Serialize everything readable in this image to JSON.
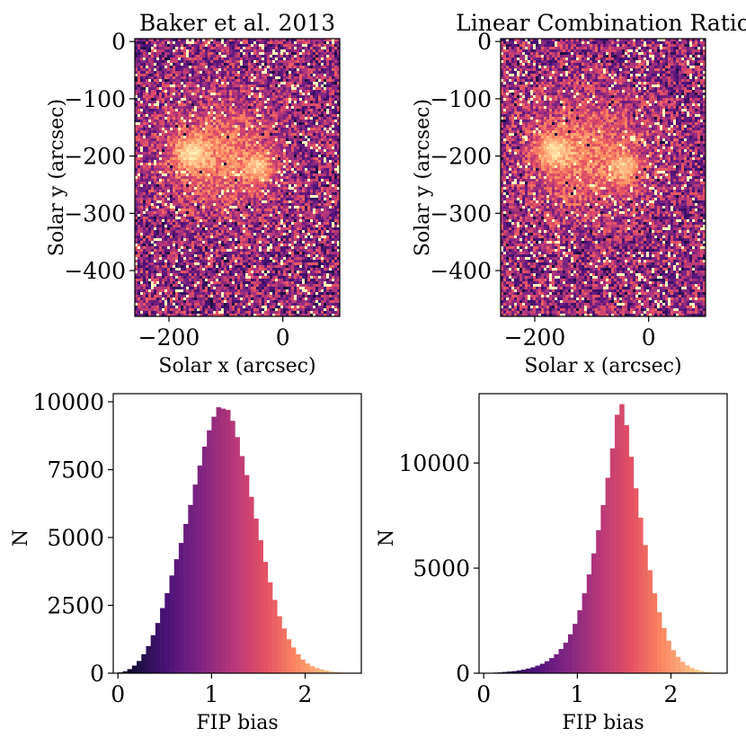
{
  "chart_data": [
    {
      "id": "map-left",
      "type": "heatmap",
      "title": "Baker et al. 2013",
      "xlabel": "Solar x (arcsec)",
      "ylabel": "Solar y (arcsec)",
      "xlim": [
        -260,
        100
      ],
      "ylim": [
        -480,
        5
      ],
      "xticks": [
        {
          "value": -200,
          "label": "−200"
        },
        {
          "value": 0,
          "label": "0"
        }
      ],
      "yticks": [
        {
          "value": 0,
          "label": "0"
        },
        {
          "value": -100,
          "label": "−100"
        },
        {
          "value": -200,
          "label": "−200"
        },
        {
          "value": -300,
          "label": "−300"
        },
        {
          "value": -400,
          "label": "−400"
        }
      ],
      "colormap": "magma",
      "bright_regions": [
        {
          "x": -110,
          "y": -200,
          "r": 105
        },
        {
          "x": -40,
          "y": -220,
          "r": 30
        },
        {
          "x": -165,
          "y": -195,
          "r": 35
        }
      ]
    },
    {
      "id": "map-right",
      "type": "heatmap",
      "title": "Linear Combination Ratio",
      "xlabel": "Solar x (arcsec)",
      "ylabel": "Solar y (arcsec)",
      "xlim": [
        -260,
        100
      ],
      "ylim": [
        -480,
        5
      ],
      "xticks": [
        {
          "value": -200,
          "label": "−200"
        },
        {
          "value": 0,
          "label": "0"
        }
      ],
      "yticks": [
        {
          "value": 0,
          "label": "0"
        },
        {
          "value": -100,
          "label": "−100"
        },
        {
          "value": -200,
          "label": "−200"
        },
        {
          "value": -300,
          "label": "−300"
        },
        {
          "value": -400,
          "label": "−400"
        }
      ],
      "colormap": "magma",
      "bright_regions": [
        {
          "x": -110,
          "y": -200,
          "r": 110
        },
        {
          "x": -40,
          "y": -220,
          "r": 30
        },
        {
          "x": -170,
          "y": -190,
          "r": 35
        }
      ]
    },
    {
      "id": "hist-left",
      "type": "bar",
      "title": "",
      "xlabel": "FIP bias",
      "ylabel": "N",
      "xlim": [
        -0.05,
        2.6
      ],
      "ylim": [
        0,
        10300
      ],
      "bin_width": 0.05,
      "bin_start": 0.0,
      "colormap": "magma",
      "xticks": [
        {
          "value": 0,
          "label": "0"
        },
        {
          "value": 1,
          "label": "1"
        },
        {
          "value": 2,
          "label": "2"
        }
      ],
      "yticks": [
        {
          "value": 0,
          "label": "0"
        },
        {
          "value": 2500,
          "label": "2500"
        },
        {
          "value": 5000,
          "label": "5000"
        },
        {
          "value": 7500,
          "label": "7500"
        },
        {
          "value": 10000,
          "label": "10000"
        }
      ],
      "values": [
        30,
        70,
        150,
        280,
        450,
        700,
        1000,
        1400,
        1850,
        2400,
        2950,
        3600,
        4200,
        4800,
        5500,
        6200,
        6950,
        7650,
        8350,
        8950,
        9450,
        9800,
        9750,
        9700,
        9300,
        8700,
        8000,
        7300,
        6500,
        5700,
        4900,
        4100,
        3350,
        2700,
        2100,
        1650,
        1250,
        950,
        700,
        500,
        360,
        260,
        190,
        140,
        100,
        70,
        50,
        30,
        20,
        12
      ]
    },
    {
      "id": "hist-right",
      "type": "bar",
      "title": "",
      "xlabel": "FIP bias",
      "ylabel": "N",
      "xlim": [
        -0.05,
        2.6
      ],
      "ylim": [
        0,
        13300
      ],
      "bin_width": 0.05,
      "bin_start": 0.0,
      "colormap": "magma",
      "xticks": [
        {
          "value": 0,
          "label": "0"
        },
        {
          "value": 1,
          "label": "1"
        },
        {
          "value": 2,
          "label": "2"
        }
      ],
      "yticks": [
        {
          "value": 0,
          "label": "0"
        },
        {
          "value": 5000,
          "label": "5000"
        },
        {
          "value": 10000,
          "label": "10000"
        }
      ],
      "values": [
        10,
        20,
        30,
        40,
        60,
        80,
        100,
        130,
        170,
        220,
        280,
        360,
        450,
        570,
        720,
        900,
        1150,
        1450,
        1850,
        2350,
        3000,
        3800,
        4700,
        5700,
        6800,
        8000,
        9300,
        10700,
        12300,
        12800,
        11800,
        10300,
        8800,
        7400,
        6100,
        4900,
        3800,
        2900,
        2150,
        1550,
        1100,
        780,
        540,
        370,
        250,
        170,
        110,
        70,
        40,
        20
      ]
    }
  ]
}
